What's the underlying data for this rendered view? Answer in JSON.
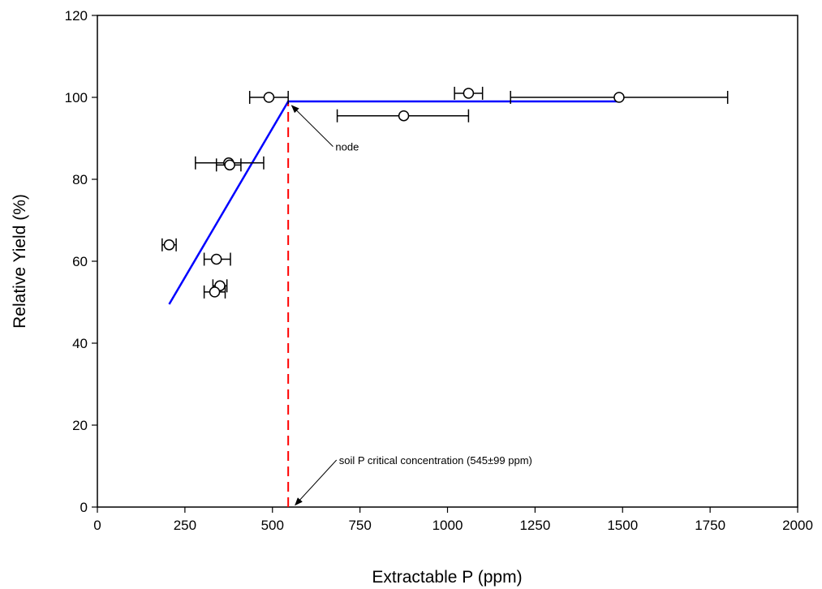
{
  "chart_data": {
    "type": "scatter",
    "title": "",
    "xlabel": "Extractable P (ppm)",
    "ylabel": "Relative Yield (%)",
    "xlim": [
      0,
      2000
    ],
    "ylim": [
      0,
      120
    ],
    "xticks": [
      0,
      250,
      500,
      750,
      1000,
      1250,
      1500,
      1750,
      2000
    ],
    "yticks": [
      0,
      20,
      40,
      60,
      80,
      100,
      120
    ],
    "grid": false,
    "legend": "none",
    "observations": [
      {
        "x": 205,
        "y": 64,
        "xerr_low": 185,
        "xerr_high": 225
      },
      {
        "x": 340,
        "y": 60.5,
        "xerr_low": 305,
        "xerr_high": 380
      },
      {
        "x": 350,
        "y": 54,
        "xerr_low": 330,
        "xerr_high": 370
      },
      {
        "x": 335,
        "y": 52.5,
        "xerr_low": 305,
        "xerr_high": 365
      },
      {
        "x": 375,
        "y": 84,
        "xerr_low": 280,
        "xerr_high": 475
      },
      {
        "x": 378,
        "y": 83.5,
        "xerr_low": 340,
        "xerr_high": 410
      },
      {
        "x": 490,
        "y": 100,
        "xerr_low": 435,
        "xerr_high": 545
      },
      {
        "x": 875,
        "y": 95.5,
        "xerr_low": 685,
        "xerr_high": 1060
      },
      {
        "x": 1060,
        "y": 101,
        "xerr_low": 1020,
        "xerr_high": 1100
      },
      {
        "x": 1490,
        "y": 100,
        "xerr_low": 1180,
        "xerr_high": 1800
      }
    ],
    "fit_line": {
      "color": "#0000ff",
      "points": [
        [
          205,
          49.5
        ],
        [
          545,
          99
        ],
        [
          1490,
          99
        ]
      ]
    },
    "critical_line": {
      "x": 545,
      "y_from": 0,
      "y_to": 99,
      "color": "#ff0000",
      "style": "dashed"
    },
    "annotations": [
      {
        "text": "node",
        "x": 680,
        "y": 87,
        "arrow_to": [
          555,
          98
        ]
      },
      {
        "text": "soil P critical concentration (545±99 ppm)",
        "x": 690,
        "y": 10.5,
        "arrow_to": [
          565,
          0.5
        ]
      }
    ]
  }
}
